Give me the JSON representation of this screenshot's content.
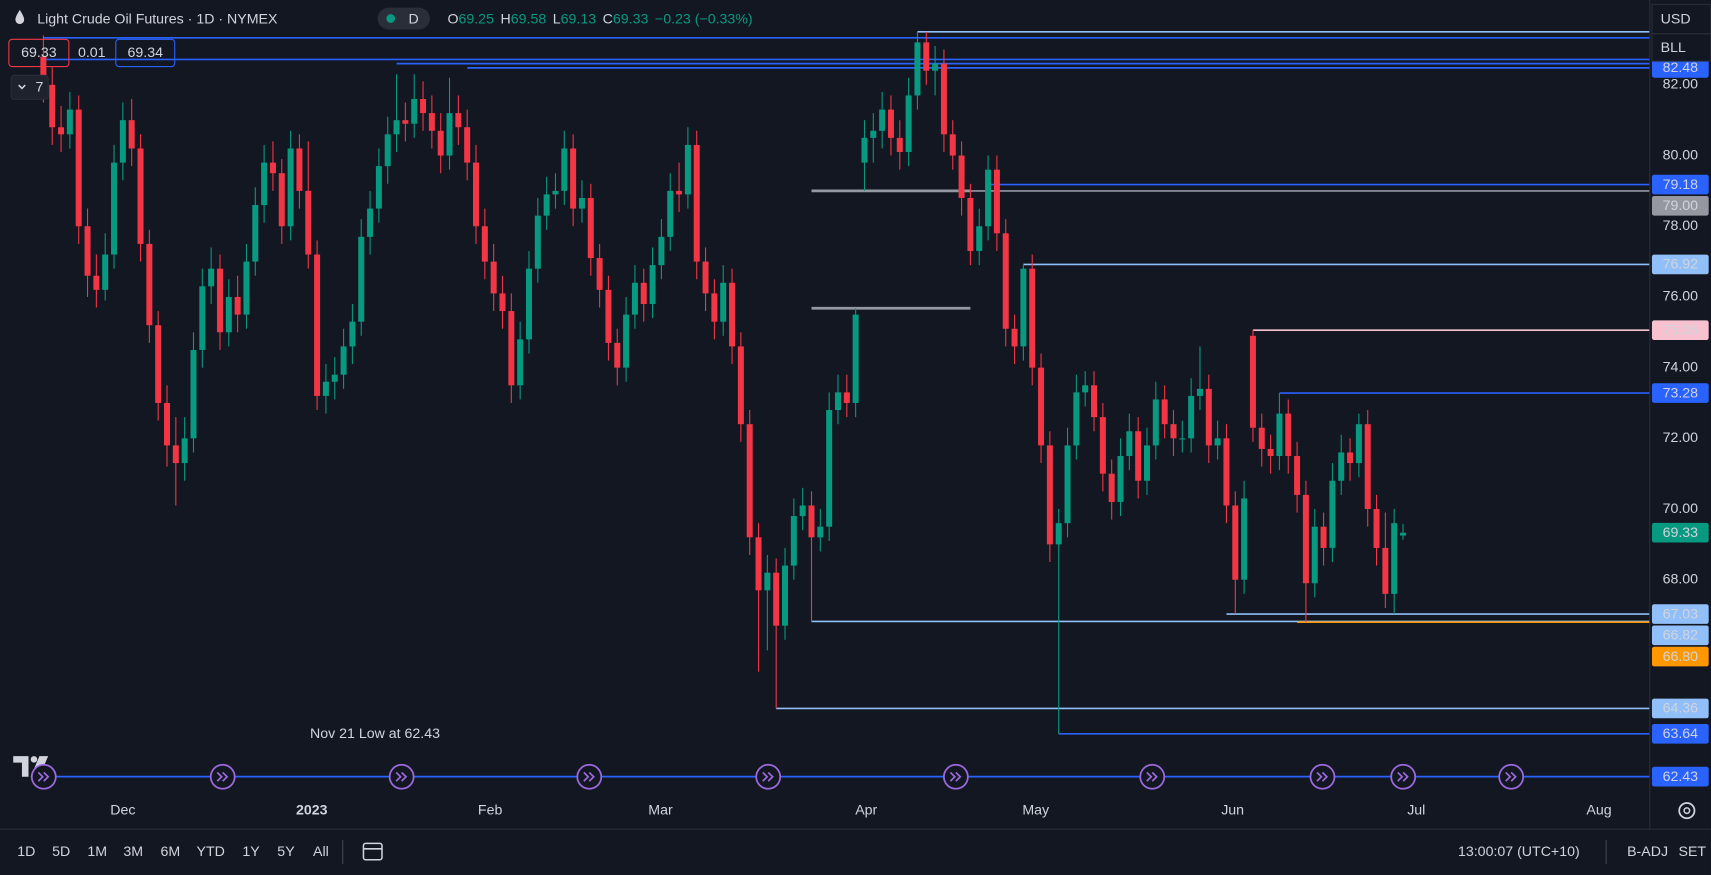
{
  "ui": {
    "title": "Light Crude Oil Futures · 1D · NYMEX",
    "session_badge": "D",
    "ohlc_labels": [
      "O",
      "H",
      "L",
      "C"
    ],
    "change": "−0.23 (−0.33%)",
    "bid": 69.33,
    "spread": 0.01,
    "ask": 69.34,
    "indicators_count": "7",
    "currency": "USD",
    "unit": "BLL",
    "intervals": [
      "1D",
      "5D",
      "1M",
      "3M",
      "6M",
      "YTD",
      "1Y",
      "5Y",
      "All"
    ],
    "clock": "13:00:07 (UTC+10)",
    "adjust": "B-ADJ",
    "settlement": "SET"
  },
  "chart_data": {
    "type": "candlestick",
    "title": "Light Crude Oil Futures",
    "up_color": "#089981",
    "down_color": "#f23645",
    "grid": false,
    "xlim": [
      -4.9,
      181.7
    ],
    "ylim": [
      61.9,
      84.4
    ],
    "xticks": [
      {
        "value": 9,
        "label": "Dec"
      },
      {
        "value": 30.4,
        "label": "2023"
      },
      {
        "value": 50.6,
        "label": "Feb"
      },
      {
        "value": 69.9,
        "label": "Mar"
      },
      {
        "value": 93.2,
        "label": "Apr"
      },
      {
        "value": 112.4,
        "label": "May"
      },
      {
        "value": 134.7,
        "label": "Jun"
      },
      {
        "value": 155.5,
        "label": "Jul"
      },
      {
        "value": 176.2,
        "label": "Aug"
      }
    ],
    "yticks": [
      {
        "value": 82,
        "label": "82.00"
      },
      {
        "value": 80,
        "label": "80.00"
      },
      {
        "value": 78,
        "label": "78.00"
      },
      {
        "value": 76,
        "label": "76.00"
      },
      {
        "value": 74,
        "label": "74.00"
      },
      {
        "value": 72,
        "label": "72.00"
      },
      {
        "value": 70,
        "label": "70.00"
      },
      {
        "value": 68,
        "label": "68.00"
      }
    ],
    "annotation": "Nov 21 Low at 62.43",
    "candles": [
      [
        82.8,
        83.4,
        81.5,
        82.0
      ],
      [
        82.0,
        82.5,
        80.3,
        80.8
      ],
      [
        80.8,
        81.4,
        80.1,
        80.6
      ],
      [
        80.6,
        81.8,
        80.2,
        81.3
      ],
      [
        81.3,
        81.7,
        77.5,
        78.0
      ],
      [
        78.0,
        78.5,
        76.0,
        76.6
      ],
      [
        76.6,
        77.2,
        75.7,
        76.2
      ],
      [
        76.2,
        77.8,
        75.9,
        77.2
      ],
      [
        77.2,
        80.3,
        76.8,
        79.8
      ],
      [
        79.8,
        81.5,
        79.3,
        81.0
      ],
      [
        81.0,
        81.6,
        79.7,
        80.2
      ],
      [
        80.2,
        80.6,
        77.0,
        77.5
      ],
      [
        77.5,
        77.9,
        74.7,
        75.2
      ],
      [
        75.2,
        75.6,
        72.5,
        73.0
      ],
      [
        73.0,
        73.5,
        71.2,
        71.8
      ],
      [
        71.8,
        72.6,
        70.1,
        71.3
      ],
      [
        71.3,
        72.6,
        70.8,
        72.0
      ],
      [
        72.0,
        75.0,
        71.6,
        74.5
      ],
      [
        74.5,
        76.8,
        74.0,
        76.3
      ],
      [
        76.3,
        77.4,
        75.8,
        76.8
      ],
      [
        76.8,
        77.2,
        74.5,
        75.0
      ],
      [
        75.0,
        76.5,
        74.6,
        76.0
      ],
      [
        76.0,
        76.6,
        75.0,
        75.5
      ],
      [
        75.5,
        77.5,
        75.1,
        77.0
      ],
      [
        77.0,
        79.1,
        76.6,
        78.6
      ],
      [
        78.6,
        80.3,
        78.1,
        79.8
      ],
      [
        79.8,
        80.4,
        79.0,
        79.5
      ],
      [
        79.5,
        79.9,
        77.5,
        78.0
      ],
      [
        78.0,
        80.7,
        77.6,
        80.2
      ],
      [
        80.2,
        80.6,
        78.5,
        79.0
      ],
      [
        79.0,
        80.4,
        76.8,
        77.2
      ],
      [
        77.2,
        77.6,
        72.8,
        73.2
      ],
      [
        73.2,
        74.1,
        72.7,
        73.6
      ],
      [
        73.6,
        74.3,
        73.1,
        73.8
      ],
      [
        73.8,
        75.1,
        73.4,
        74.6
      ],
      [
        74.6,
        75.8,
        74.1,
        75.3
      ],
      [
        75.3,
        78.2,
        74.9,
        77.7
      ],
      [
        77.7,
        79.0,
        77.2,
        78.5
      ],
      [
        78.5,
        80.2,
        78.1,
        79.7
      ],
      [
        79.7,
        81.1,
        79.2,
        80.6
      ],
      [
        80.6,
        82.3,
        80.1,
        81.0
      ],
      [
        81.0,
        81.5,
        80.4,
        80.9
      ],
      [
        80.9,
        82.3,
        80.5,
        81.6
      ],
      [
        81.6,
        82.1,
        80.7,
        81.2
      ],
      [
        81.2,
        81.7,
        80.2,
        80.7
      ],
      [
        80.7,
        81.2,
        79.5,
        80.0
      ],
      [
        80.0,
        82.2,
        79.6,
        81.2
      ],
      [
        81.2,
        81.7,
        80.3,
        80.8
      ],
      [
        80.8,
        81.3,
        79.3,
        79.8
      ],
      [
        79.8,
        80.3,
        77.5,
        78.0
      ],
      [
        78.0,
        78.5,
        76.5,
        77.0
      ],
      [
        77.0,
        77.5,
        75.6,
        76.1
      ],
      [
        76.1,
        76.6,
        75.1,
        75.6
      ],
      [
        75.6,
        76.1,
        73.0,
        73.5
      ],
      [
        73.5,
        75.3,
        73.1,
        74.8
      ],
      [
        74.8,
        77.3,
        74.4,
        76.8
      ],
      [
        76.8,
        78.8,
        76.4,
        78.3
      ],
      [
        78.3,
        79.4,
        77.9,
        78.9
      ],
      [
        78.9,
        79.5,
        78.5,
        79.0
      ],
      [
        79.0,
        80.7,
        78.6,
        80.2
      ],
      [
        80.2,
        80.6,
        78.0,
        78.5
      ],
      [
        78.5,
        79.3,
        78.1,
        78.8
      ],
      [
        78.8,
        79.2,
        76.6,
        77.1
      ],
      [
        77.1,
        77.5,
        75.7,
        76.2
      ],
      [
        76.2,
        76.6,
        74.2,
        74.7
      ],
      [
        74.7,
        75.1,
        73.5,
        74.0
      ],
      [
        74.0,
        76.0,
        73.6,
        75.5
      ],
      [
        75.5,
        76.9,
        75.1,
        76.4
      ],
      [
        76.4,
        76.8,
        75.3,
        75.8
      ],
      [
        75.8,
        77.4,
        75.4,
        76.9
      ],
      [
        76.9,
        78.2,
        76.5,
        77.7
      ],
      [
        77.7,
        79.5,
        77.3,
        79.0
      ],
      [
        79.0,
        79.8,
        78.4,
        78.9
      ],
      [
        78.9,
        80.8,
        78.5,
        80.3
      ],
      [
        80.3,
        80.7,
        76.5,
        77.0
      ],
      [
        77.0,
        77.4,
        75.6,
        76.1
      ],
      [
        76.1,
        76.5,
        74.8,
        75.3
      ],
      [
        75.3,
        76.9,
        74.9,
        76.4
      ],
      [
        76.4,
        76.8,
        74.1,
        74.6
      ],
      [
        74.6,
        75.0,
        71.9,
        72.4
      ],
      [
        72.4,
        72.8,
        68.7,
        69.2
      ],
      [
        69.2,
        69.6,
        65.4,
        67.7
      ],
      [
        67.7,
        68.7,
        66.0,
        68.2
      ],
      [
        68.2,
        68.6,
        64.36,
        66.7
      ],
      [
        66.7,
        68.9,
        66.3,
        68.4
      ],
      [
        68.4,
        70.3,
        68.0,
        69.8
      ],
      [
        69.8,
        70.6,
        69.4,
        70.1
      ],
      [
        70.1,
        70.5,
        66.82,
        69.2
      ],
      [
        69.2,
        70.0,
        68.8,
        69.5
      ],
      [
        69.5,
        73.3,
        69.1,
        72.8
      ],
      [
        72.8,
        73.8,
        72.4,
        73.3
      ],
      [
        73.3,
        73.8,
        72.6,
        73.0
      ],
      [
        73.0,
        75.68,
        72.6,
        75.5
      ],
      [
        79.8,
        81.0,
        79.0,
        80.5
      ],
      [
        80.5,
        81.2,
        79.8,
        80.7
      ],
      [
        80.7,
        81.8,
        80.2,
        81.3
      ],
      [
        81.3,
        81.7,
        80.0,
        80.5
      ],
      [
        80.5,
        81.0,
        79.6,
        80.1
      ],
      [
        80.1,
        82.2,
        79.7,
        81.7
      ],
      [
        81.7,
        83.5,
        81.3,
        83.2
      ],
      [
        83.2,
        83.5,
        82.0,
        82.4
      ],
      [
        82.4,
        83.1,
        81.7,
        82.6
      ],
      [
        82.6,
        83.0,
        80.1,
        80.6
      ],
      [
        80.6,
        81.0,
        79.6,
        80.0
      ],
      [
        80.0,
        80.4,
        78.3,
        78.8
      ],
      [
        78.8,
        79.2,
        76.9,
        77.3
      ],
      [
        77.3,
        78.5,
        76.9,
        78.0
      ],
      [
        78.0,
        80.0,
        77.6,
        79.6
      ],
      [
        79.6,
        80.0,
        77.3,
        77.8
      ],
      [
        77.8,
        78.2,
        74.6,
        75.1
      ],
      [
        75.1,
        75.5,
        74.1,
        74.6
      ],
      [
        74.6,
        76.92,
        74.2,
        76.8
      ],
      [
        76.8,
        77.2,
        73.5,
        74.0
      ],
      [
        74.0,
        74.4,
        71.3,
        71.8
      ],
      [
        71.8,
        72.2,
        68.5,
        69.0
      ],
      [
        69.0,
        70.0,
        63.64,
        69.6
      ],
      [
        69.6,
        72.3,
        69.2,
        71.8
      ],
      [
        71.8,
        73.8,
        71.4,
        73.3
      ],
      [
        73.3,
        73.9,
        72.9,
        73.5
      ],
      [
        73.5,
        73.9,
        72.2,
        72.6
      ],
      [
        72.6,
        73.0,
        70.5,
        71.0
      ],
      [
        71.0,
        71.4,
        69.7,
        70.2
      ],
      [
        70.2,
        72.0,
        69.8,
        71.5
      ],
      [
        71.5,
        72.7,
        71.1,
        72.2
      ],
      [
        72.2,
        72.6,
        70.3,
        70.8
      ],
      [
        70.8,
        72.3,
        70.4,
        71.8
      ],
      [
        71.8,
        73.6,
        71.4,
        73.1
      ],
      [
        73.1,
        73.5,
        72.0,
        72.4
      ],
      [
        72.4,
        72.8,
        71.5,
        72.0
      ],
      [
        72.0,
        72.5,
        71.6,
        72.0
      ],
      [
        72.0,
        73.7,
        71.6,
        73.2
      ],
      [
        73.2,
        74.6,
        72.8,
        73.4
      ],
      [
        73.4,
        73.8,
        71.3,
        71.8
      ],
      [
        71.8,
        72.5,
        71.4,
        72.0
      ],
      [
        72.0,
        72.4,
        69.6,
        70.1
      ],
      [
        70.1,
        70.5,
        67.03,
        68.0
      ],
      [
        68.0,
        70.8,
        67.6,
        70.3
      ],
      [
        74.9,
        75.06,
        71.9,
        72.3
      ],
      [
        72.3,
        72.7,
        71.2,
        71.7
      ],
      [
        71.7,
        72.1,
        71.0,
        71.5
      ],
      [
        71.5,
        73.28,
        71.1,
        72.7
      ],
      [
        72.7,
        73.1,
        71.0,
        71.5
      ],
      [
        71.5,
        71.9,
        69.9,
        70.4
      ],
      [
        70.4,
        70.8,
        66.8,
        67.9
      ],
      [
        67.9,
        70.0,
        67.5,
        69.5
      ],
      [
        69.5,
        69.9,
        68.4,
        68.9
      ],
      [
        68.9,
        71.3,
        68.5,
        70.8
      ],
      [
        70.8,
        72.1,
        70.4,
        71.6
      ],
      [
        71.6,
        72.0,
        70.8,
        71.3
      ],
      [
        71.3,
        72.7,
        70.9,
        72.4
      ],
      [
        72.4,
        72.8,
        69.5,
        70.0
      ],
      [
        70.0,
        70.4,
        68.4,
        68.9
      ],
      [
        68.9,
        69.9,
        67.2,
        67.6
      ],
      [
        67.6,
        70.0,
        67.03,
        69.6
      ],
      [
        69.25,
        69.58,
        69.13,
        69.33
      ]
    ],
    "levels": [
      {
        "value": 83.5,
        "color": "#90bff9",
        "from": 99,
        "tag": false
      },
      {
        "value": 83.33,
        "color": "#2962ff",
        "from": 0,
        "tag": false
      },
      {
        "value": 82.72,
        "color": "#2962ff",
        "from": 0,
        "tag": false
      },
      {
        "value": 82.6,
        "color": "#2962ff",
        "from": 40,
        "tag": false
      },
      {
        "value": 82.48,
        "color": "#2962ff",
        "from": 48,
        "tag": true
      },
      {
        "value": 79.18,
        "color": "#2962ff",
        "from": 107,
        "tag": true
      },
      {
        "value": 79,
        "label": "79.00",
        "color": "#9598a1",
        "from": 93,
        "tag": true
      },
      {
        "value": 76.92,
        "color": "#90bff9",
        "from": 111,
        "tag": true
      },
      {
        "value": 75.06,
        "color": "#f7c1d0",
        "from": 137,
        "tag": true
      },
      {
        "value": 73.28,
        "color": "#2962ff",
        "from": 140,
        "tag": true
      },
      {
        "value": 67.03,
        "color": "#90bff9",
        "from": 134,
        "tag": true
      },
      {
        "value": 66.82,
        "color": "#90bff9",
        "from": 87,
        "tag": true
      },
      {
        "value": 66.8,
        "label": "66.80",
        "color": "#ff9800",
        "from": 142,
        "tag": true
      },
      {
        "value": 64.36,
        "color": "#90bff9",
        "from": 83,
        "tag": true
      },
      {
        "value": 63.64,
        "color": "#2962ff",
        "from": 115,
        "tag": true
      },
      {
        "value": 62.43,
        "color": "#2962ff",
        "from": 0,
        "tag": true
      }
    ],
    "segments": [
      {
        "value": 79,
        "from": 87,
        "to": 105,
        "color": "#9598a1"
      },
      {
        "value": 75.68,
        "from": 87,
        "to": 105,
        "color": "#9598a1"
      }
    ]
  }
}
